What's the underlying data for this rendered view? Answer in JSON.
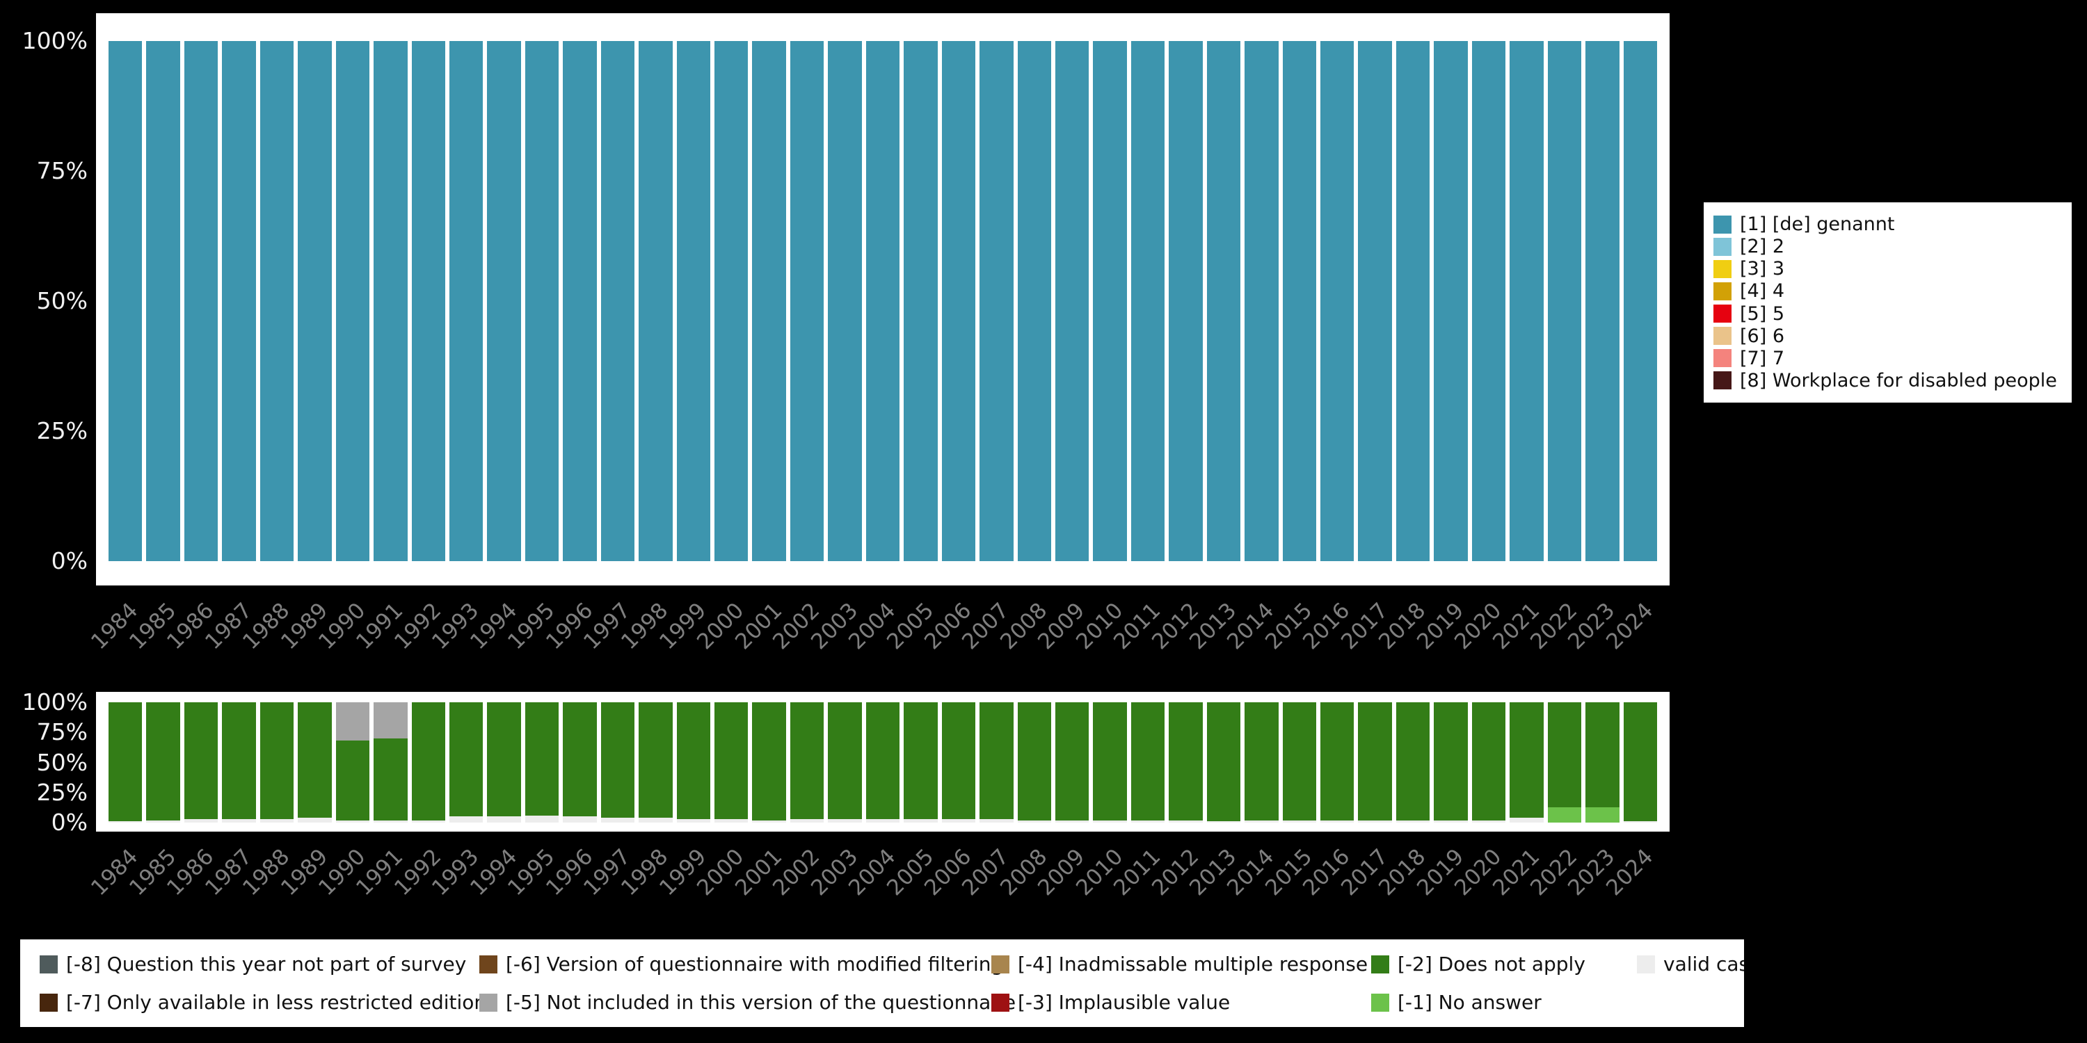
{
  "colors": {
    "background": "#000000",
    "panel": "#ffffff",
    "axis_tick_text": "#f2f2f2",
    "year_label_text": "#7f7f7f"
  },
  "top_legend": {
    "items": [
      {
        "label": "[1] [de] genannt",
        "color": "#3D95AE"
      },
      {
        "label": "[2] 2",
        "color": "#7FC4D8"
      },
      {
        "label": "[3] 3",
        "color": "#F0CE12"
      },
      {
        "label": "[4] 4",
        "color": "#D2A106"
      },
      {
        "label": "[5] 5",
        "color": "#E60210"
      },
      {
        "label": "[6] 6",
        "color": "#EAC38A"
      },
      {
        "label": "[7] 7",
        "color": "#F4837D"
      },
      {
        "label": "[8] Workplace for disabled people",
        "color": "#461717"
      }
    ]
  },
  "bottom_legend": {
    "items": [
      {
        "label": "[-8] Question this year not part of survey",
        "color": "#4F5B5C"
      },
      {
        "label": "[-7] Only available in less restricted edition",
        "color": "#47260D"
      },
      {
        "label": "[-6] Version of questionnaire with modified filtering",
        "color": "#6F451C"
      },
      {
        "label": "[-5] Not included in this version of the questionnaire",
        "color": "#A5A5A5"
      },
      {
        "label": "[-4] Inadmissable multiple response",
        "color": "#A8854E"
      },
      {
        "label": "[-3] Implausible value",
        "color": "#9E1112"
      },
      {
        "label": "[-2] Does not apply",
        "color": "#337D17"
      },
      {
        "label": "[-1] No answer",
        "color": "#6CC24A"
      },
      {
        "label": "valid cases",
        "color": "#EDEDED"
      }
    ]
  },
  "chart_data": [
    {
      "type": "bar",
      "stacked": true,
      "title": "",
      "xlabel": "",
      "ylabel": "",
      "ylim": [
        0,
        100
      ],
      "grid": false,
      "legend_position": "right",
      "yticks": [
        "100%",
        "75%",
        "50%",
        "25%",
        "0%"
      ],
      "categories": [
        "1984",
        "1985",
        "1986",
        "1987",
        "1988",
        "1989",
        "1990",
        "1991",
        "1992",
        "1993",
        "1994",
        "1995",
        "1996",
        "1997",
        "1998",
        "1999",
        "2000",
        "2001",
        "2002",
        "2003",
        "2004",
        "2005",
        "2006",
        "2007",
        "2008",
        "2009",
        "2010",
        "2011",
        "2012",
        "2013",
        "2014",
        "2015",
        "2016",
        "2017",
        "2018",
        "2019",
        "2020",
        "2021",
        "2022",
        "2023",
        "2024"
      ],
      "series": [
        {
          "name": "[1] [de] genannt",
          "color": "#3D95AE",
          "values": [
            100,
            100,
            100,
            100,
            100,
            100,
            100,
            100,
            100,
            100,
            100,
            100,
            100,
            100,
            100,
            100,
            100,
            100,
            100,
            100,
            100,
            100,
            100,
            100,
            100,
            100,
            100,
            100,
            100,
            100,
            100,
            100,
            100,
            100,
            100,
            100,
            100,
            100,
            100,
            100,
            100
          ]
        }
      ]
    },
    {
      "type": "bar",
      "stacked": true,
      "title": "",
      "xlabel": "",
      "ylabel": "",
      "ylim": [
        0,
        100
      ],
      "grid": false,
      "legend_position": "bottom",
      "yticks": [
        "100%",
        "75%",
        "50%",
        "25%",
        "0%"
      ],
      "categories": [
        "1984",
        "1985",
        "1986",
        "1987",
        "1988",
        "1989",
        "1990",
        "1991",
        "1992",
        "1993",
        "1994",
        "1995",
        "1996",
        "1997",
        "1998",
        "1999",
        "2000",
        "2001",
        "2002",
        "2003",
        "2004",
        "2005",
        "2006",
        "2007",
        "2008",
        "2009",
        "2010",
        "2011",
        "2012",
        "2013",
        "2014",
        "2015",
        "2016",
        "2017",
        "2018",
        "2019",
        "2020",
        "2021",
        "2022",
        "2023",
        "2024"
      ],
      "series": [
        {
          "name": "valid cases",
          "color": "#EDEDED",
          "values": [
            1,
            2,
            3,
            3,
            3,
            4,
            2,
            2,
            2,
            5,
            5,
            6,
            5,
            4,
            4,
            3,
            3,
            2,
            3,
            3,
            3,
            3,
            3,
            3,
            2,
            2,
            2,
            2,
            2,
            1,
            2,
            2,
            2,
            2,
            2,
            2,
            2,
            4,
            0,
            0,
            1
          ]
        },
        {
          "name": "[-1] No answer",
          "color": "#6CC24A",
          "values": [
            0,
            0,
            0,
            0,
            0,
            0,
            0,
            0,
            0,
            0,
            0,
            0,
            0,
            0,
            0,
            0,
            0,
            0,
            0,
            0,
            0,
            0,
            0,
            0,
            0,
            0,
            0,
            0,
            0,
            0,
            0,
            0,
            0,
            0,
            0,
            0,
            0,
            0,
            13,
            13,
            0
          ]
        },
        {
          "name": "[-2] Does not apply",
          "color": "#337D17",
          "values": [
            99,
            98,
            97,
            97,
            97,
            96,
            66,
            68,
            98,
            95,
            95,
            94,
            95,
            96,
            96,
            97,
            97,
            98,
            97,
            97,
            97,
            97,
            97,
            97,
            98,
            98,
            98,
            98,
            98,
            99,
            98,
            98,
            98,
            98,
            98,
            98,
            98,
            96,
            87,
            87,
            99
          ]
        },
        {
          "name": "[-5] Not included in this version of the questionnaire",
          "color": "#A5A5A5",
          "values": [
            0,
            0,
            0,
            0,
            0,
            0,
            32,
            30,
            0,
            0,
            0,
            0,
            0,
            0,
            0,
            0,
            0,
            0,
            0,
            0,
            0,
            0,
            0,
            0,
            0,
            0,
            0,
            0,
            0,
            0,
            0,
            0,
            0,
            0,
            0,
            0,
            0,
            0,
            0,
            0,
            0
          ]
        }
      ]
    }
  ]
}
